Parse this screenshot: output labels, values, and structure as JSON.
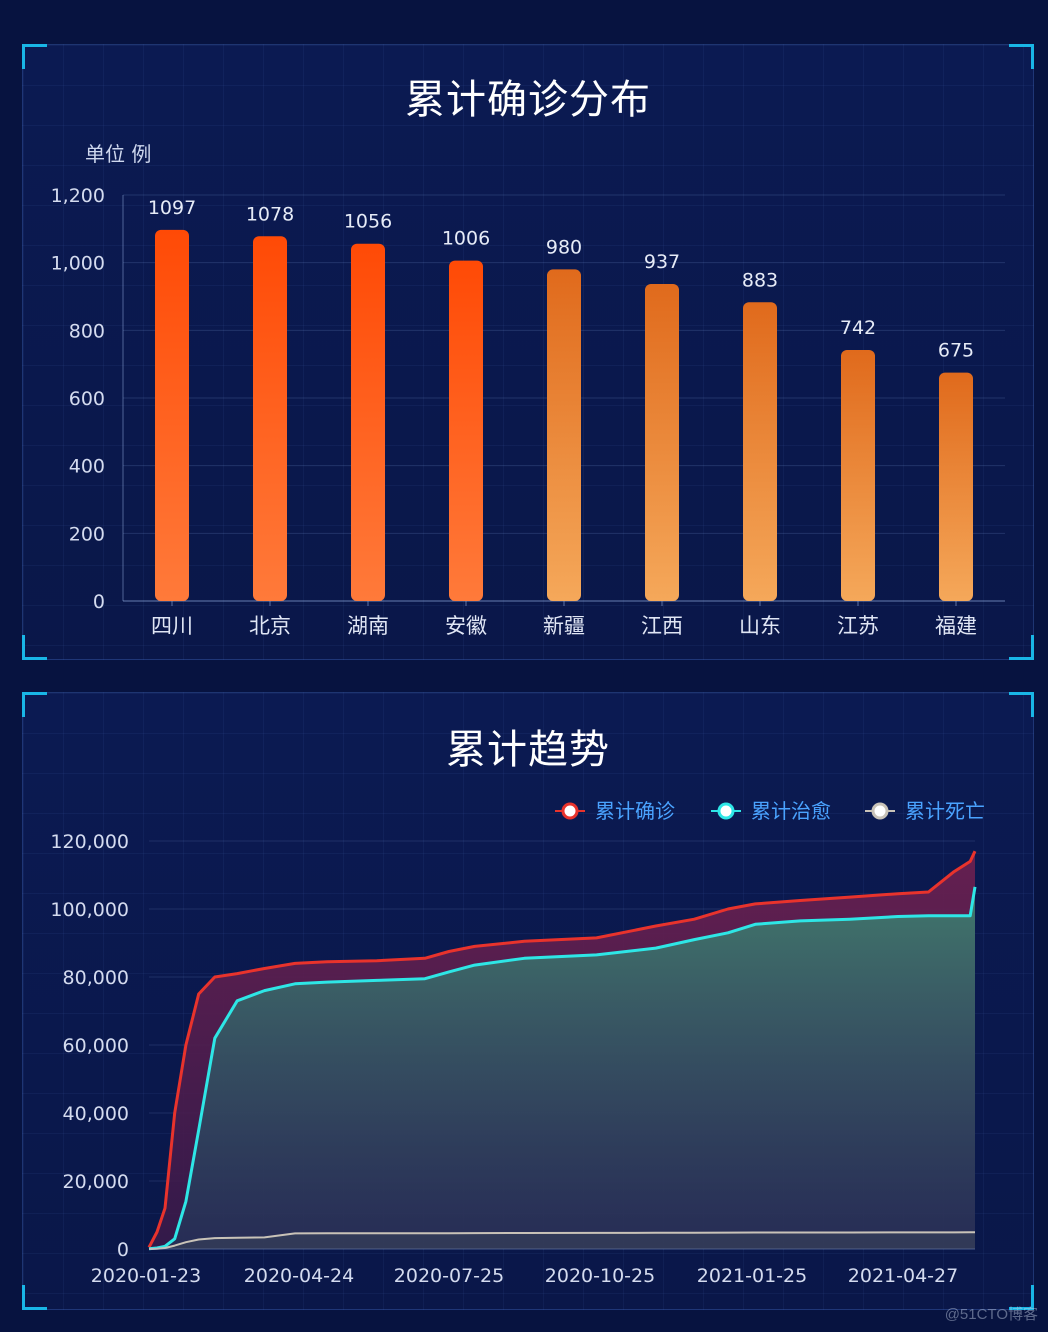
{
  "watermark": "@51CTO博客",
  "chart_data": [
    {
      "type": "bar",
      "title": "累计确诊分布",
      "ylabel": "单位 例",
      "categories": [
        "四川",
        "北京",
        "湖南",
        "安徽",
        "新疆",
        "江西",
        "山东",
        "江苏",
        "福建"
      ],
      "values": [
        1097,
        1078,
        1056,
        1006,
        980,
        937,
        883,
        742,
        675
      ],
      "data_labels": [
        "1097",
        "1078",
        "1056",
        "1006",
        "980",
        "937",
        "883",
        "742",
        "675"
      ],
      "ylim": [
        0,
        1200
      ],
      "yticks": [
        0,
        200,
        400,
        600,
        800,
        1000,
        1200
      ],
      "ytick_labels": [
        "0",
        "200",
        "400",
        "600",
        "800",
        "1,000",
        "1,200"
      ],
      "grid": true,
      "colors": {
        "hot_top": "#ff4a06",
        "hot_bottom": "#ff7a3a",
        "warm_top": "#e06a1c",
        "warm_bottom": "#f5a85a"
      }
    },
    {
      "type": "area",
      "title": "累计趋势",
      "x": [
        "2020-01-20",
        "2020-01-25",
        "2020-01-30",
        "2020-02-05",
        "2020-02-12",
        "2020-02-20",
        "2020-03-01",
        "2020-03-15",
        "2020-04-01",
        "2020-04-20",
        "2020-05-10",
        "2020-06-10",
        "2020-07-10",
        "2020-07-25",
        "2020-08-10",
        "2020-09-10",
        "2020-10-25",
        "2020-12-01",
        "2020-12-25",
        "2021-01-15",
        "2021-02-01",
        "2021-03-01",
        "2021-04-01",
        "2021-05-01",
        "2021-05-20",
        "2021-06-05",
        "2021-06-15",
        "2021-06-18"
      ],
      "xtick_labels": [
        "2020-01-23",
        "2020-04-24",
        "2020-07-25",
        "2020-10-25",
        "2021-01-25",
        "2021-04-27"
      ],
      "series": [
        {
          "name": "累计确诊",
          "color": "#e8332c",
          "values": [
            500,
            5000,
            12000,
            40000,
            60000,
            75000,
            80000,
            81000,
            82500,
            84000,
            84500,
            84800,
            85500,
            87500,
            89000,
            90500,
            91500,
            95000,
            97000,
            100000,
            101500,
            102500,
            103500,
            104500,
            105000,
            111000,
            114000,
            117000
          ]
        },
        {
          "name": "累计治愈",
          "color": "#2ee6e6",
          "values": [
            50,
            300,
            800,
            3000,
            14000,
            35000,
            62000,
            73000,
            76000,
            78000,
            78500,
            79000,
            79500,
            81500,
            83500,
            85500,
            86500,
            88500,
            91000,
            93000,
            95500,
            96500,
            97000,
            97800,
            98000,
            98000,
            98000,
            106500
          ]
        },
        {
          "name": "累计死亡",
          "color": "#c9c3b8",
          "values": [
            20,
            100,
            300,
            1000,
            2000,
            2800,
            3200,
            3300,
            3400,
            4600,
            4630,
            4640,
            4650,
            4660,
            4670,
            4700,
            4730,
            4760,
            4800,
            4830,
            4840,
            4850,
            4860,
            4870,
            4880,
            4890,
            4900,
            4910
          ]
        }
      ],
      "ylim": [
        0,
        120000
      ],
      "yticks": [
        0,
        20000,
        40000,
        60000,
        80000,
        100000,
        120000
      ],
      "ytick_labels": [
        "0",
        "20,000",
        "40,000",
        "60,000",
        "80,000",
        "100,000",
        "120,000"
      ],
      "legend_position": "top-right",
      "grid": true
    }
  ]
}
